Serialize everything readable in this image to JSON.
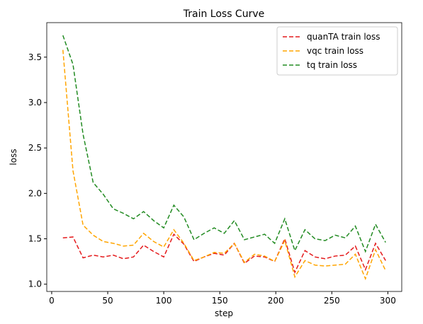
{
  "chart_data": {
    "type": "line",
    "title": "Train Loss Curve",
    "x_label": "step",
    "y_label": "loss",
    "x": [
      10,
      19,
      28,
      37,
      46,
      55,
      64,
      73,
      82,
      91,
      100,
      109,
      118,
      127,
      136,
      145,
      154,
      163,
      172,
      181,
      190,
      199,
      208,
      217,
      226,
      235,
      244,
      253,
      262,
      271,
      280,
      289,
      298
    ],
    "series": [
      {
        "name": "quanTA train loss",
        "color": "#e41a1c",
        "values": [
          1.51,
          1.52,
          1.29,
          1.32,
          1.3,
          1.32,
          1.28,
          1.3,
          1.43,
          1.36,
          1.3,
          1.55,
          1.44,
          1.25,
          1.3,
          1.34,
          1.32,
          1.45,
          1.23,
          1.31,
          1.3,
          1.25,
          1.5,
          1.13,
          1.37,
          1.3,
          1.28,
          1.31,
          1.32,
          1.42,
          1.16,
          1.45,
          1.26
        ]
      },
      {
        "name": "vqc train loss",
        "color": "#ffa500",
        "values": [
          3.58,
          2.25,
          1.65,
          1.54,
          1.47,
          1.45,
          1.42,
          1.43,
          1.56,
          1.47,
          1.41,
          1.6,
          1.45,
          1.26,
          1.3,
          1.35,
          1.34,
          1.45,
          1.24,
          1.33,
          1.31,
          1.25,
          1.48,
          1.08,
          1.26,
          1.21,
          1.2,
          1.21,
          1.22,
          1.33,
          1.06,
          1.38,
          1.15
        ]
      },
      {
        "name": "tq train loss",
        "color": "#228b22",
        "values": [
          3.74,
          3.42,
          2.65,
          2.12,
          1.99,
          1.83,
          1.78,
          1.72,
          1.8,
          1.7,
          1.62,
          1.87,
          1.74,
          1.49,
          1.56,
          1.62,
          1.56,
          1.7,
          1.49,
          1.52,
          1.55,
          1.45,
          1.72,
          1.37,
          1.6,
          1.5,
          1.48,
          1.54,
          1.51,
          1.64,
          1.36,
          1.66,
          1.46
        ]
      }
    ],
    "xlim": [
      -4.4,
      312.4
    ],
    "xticks": [
      0,
      50,
      100,
      150,
      200,
      250,
      300
    ],
    "ylim": [
      0.92,
      3.88
    ],
    "yticks": [
      {
        "value": 1.0,
        "label": "1.0"
      },
      {
        "value": 1.5,
        "label": "1.5"
      },
      {
        "value": 2.0,
        "label": "2.0"
      },
      {
        "value": 2.5,
        "label": "2.5"
      },
      {
        "value": 3.0,
        "label": "3.0"
      },
      {
        "value": 3.5,
        "label": "3.5"
      }
    ],
    "legend": "upper right",
    "dashed": true
  }
}
